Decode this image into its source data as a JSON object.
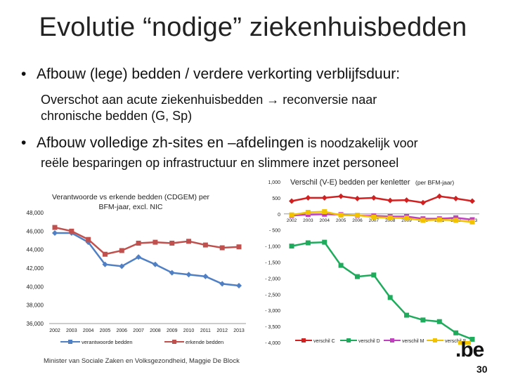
{
  "slide": {
    "title": "Evolutie “nodige” ziekenhuisbedden",
    "bullet1": "Afbouw (lege) bedden / verdere verkorting verblijfsduur:",
    "bullet1_sub_line1": "Overschot aan acute ziekenhuisbedden → reconversie naar",
    "bullet1_sub_line2": "chronische bedden (G, Sp)",
    "bullet2_big": "Afbouw volledige zh-sites en –afdelingen",
    "bullet2_small": " is noodzakelijk voor",
    "bullet2_cont": "reële besparingen op infrastructuur en slimmere inzet personeel",
    "footer": "Minister van Sociale Zaken en Volksgezondheid, Maggie De Block",
    "logo": ".be",
    "page_number": "30"
  },
  "chart_data": [
    {
      "type": "line",
      "title": "Verantwoorde vs erkende bedden (CDGEM) per BFM-jaar, excl. NIC",
      "x": [
        "2002",
        "2003",
        "2004",
        "2005",
        "2006",
        "2007",
        "2008",
        "2009",
        "2010",
        "2011",
        "2012",
        "2013"
      ],
      "ylim": [
        36000,
        48000
      ],
      "yticks": [
        "36,000",
        "38,000",
        "40,000",
        "42,000",
        "44,000",
        "46,000",
        "48,000"
      ],
      "series": [
        {
          "name": "verantwoorde bedden",
          "color": "#4f7fc4",
          "values": [
            45800,
            45800,
            44800,
            42400,
            42200,
            43200,
            42400,
            41500,
            41300,
            41100,
            40300,
            40100
          ]
        },
        {
          "name": "erkende bedden",
          "color": "#c0504d",
          "values": [
            46400,
            46000,
            45100,
            43500,
            43900,
            44700,
            44800,
            44700,
            44900,
            44500,
            44200,
            44300
          ]
        }
      ]
    },
    {
      "type": "line",
      "title": "Verschil (V-E) bedden per kenletter",
      "title_suffix": "(per BFM-jaar)",
      "x": [
        "2002",
        "2003",
        "2004",
        "2005",
        "2006",
        "2007",
        "2008",
        "2009",
        "2010",
        "2011",
        "2012",
        "2013"
      ],
      "ylim": [
        -4000,
        1000
      ],
      "yticks": [
        "1,000",
        "500",
        "0",
        "- 500",
        "- 1,000",
        "- 1,500",
        "- 2,000",
        "- 2,500",
        "- 3,000",
        "- 3,500",
        "- 4,000"
      ],
      "series": [
        {
          "name": "verschil C",
          "color": "#d22020",
          "values": [
            400,
            500,
            500,
            550,
            480,
            500,
            420,
            430,
            350,
            550,
            480,
            400
          ]
        },
        {
          "name": "verschil D",
          "color": "#1fab5c",
          "values": [
            -1000,
            -900,
            -880,
            -1600,
            -1950,
            -1900,
            -2600,
            -3150,
            -3300,
            -3350,
            -3700,
            -3900
          ]
        },
        {
          "name": "verschil M",
          "color": "#c040c0",
          "values": [
            -50,
            -20,
            -10,
            -20,
            -50,
            -60,
            -80,
            -80,
            -150,
            -150,
            -120,
            -180
          ]
        },
        {
          "name": "verschil S",
          "color": "#f2c200",
          "values": [
            -30,
            50,
            70,
            -40,
            -40,
            -100,
            -120,
            -130,
            -200,
            -180,
            -200,
            -250
          ]
        }
      ]
    }
  ]
}
